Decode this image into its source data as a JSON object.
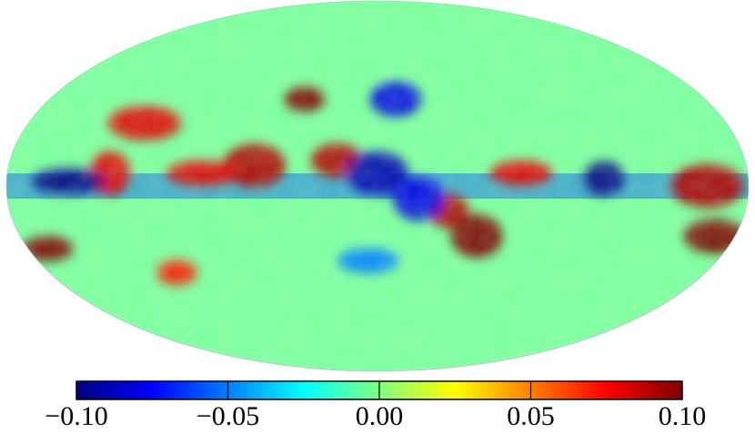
{
  "map": {
    "projection": "Mollweide",
    "type": "full-sky map",
    "colormap": "jet",
    "value_range": [
      -0.1,
      0.1
    ]
  },
  "colorbar": {
    "orientation": "horizontal",
    "min": -0.1,
    "max": 0.1,
    "ticks": [
      {
        "value": -0.1,
        "label": "−0.10"
      },
      {
        "value": -0.05,
        "label": "−0.05"
      },
      {
        "value": 0.0,
        "label": "0.00"
      },
      {
        "value": 0.05,
        "label": "0.05"
      },
      {
        "value": 0.1,
        "label": "0.10"
      }
    ],
    "colors": [
      "#00007f",
      "#0000ff",
      "#007fff",
      "#00ffff",
      "#7fff7f",
      "#ffff00",
      "#ff7f00",
      "#ff0000",
      "#7f0000"
    ]
  },
  "features": {
    "background_level": 0.0,
    "background_color": "#7fff9f",
    "blobs": [
      {
        "lon": 40,
        "lat": 35,
        "value": 0.1
      },
      {
        "lon": 20,
        "lat": 10,
        "value": 0.09
      },
      {
        "lon": 60,
        "lat": 8,
        "value": 0.09
      },
      {
        "lon": 85,
        "lat": 5,
        "value": 0.08
      },
      {
        "lon": -35,
        "lat": -10,
        "value": 0.09
      },
      {
        "lon": -50,
        "lat": -20,
        "value": 0.1
      },
      {
        "lon": -70,
        "lat": 5,
        "value": 0.08
      },
      {
        "lon": 120,
        "lat": 25,
        "value": 0.08
      },
      {
        "lon": 130,
        "lat": 5,
        "value": 0.08
      },
      {
        "lon": 170,
        "lat": -25,
        "value": 0.1
      },
      {
        "lon": -170,
        "lat": -20,
        "value": 0.1
      },
      {
        "lon": -160,
        "lat": 0,
        "value": 0.09
      },
      {
        "lon": 110,
        "lat": -35,
        "value": 0.07
      },
      {
        "lon": -10,
        "lat": 35,
        "value": -0.08
      },
      {
        "lon": 0,
        "lat": 5,
        "value": -0.09
      },
      {
        "lon": 150,
        "lat": 2,
        "value": -0.1
      },
      {
        "lon": -110,
        "lat": 3,
        "value": -0.1
      },
      {
        "lon": -20,
        "lat": -5,
        "value": -0.08
      },
      {
        "lon": 5,
        "lat": -30,
        "value": -0.05
      }
    ],
    "galactic_band": {
      "lat_width": 10,
      "value": -0.06
    }
  }
}
